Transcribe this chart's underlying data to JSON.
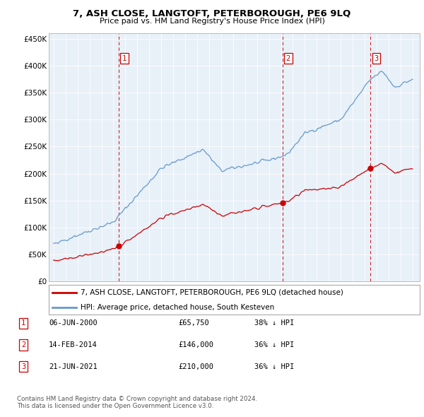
{
  "title": "7, ASH CLOSE, LANGTOFT, PETERBOROUGH, PE6 9LQ",
  "subtitle": "Price paid vs. HM Land Registry's House Price Index (HPI)",
  "y_ticks": [
    0,
    50000,
    100000,
    150000,
    200000,
    250000,
    300000,
    350000,
    400000,
    450000
  ],
  "ylim": [
    0,
    460000
  ],
  "sale_color": "#cc0000",
  "hpi_color": "#6699cc",
  "chart_bg": "#e8f0f8",
  "vline_color": "#cc0000",
  "sale_points": [
    {
      "year": 2000.44,
      "price": 65750
    },
    {
      "year": 2014.12,
      "price": 146000
    },
    {
      "year": 2021.47,
      "price": 210000
    }
  ],
  "sale_labels": [
    "1",
    "2",
    "3"
  ],
  "legend_sale": "7, ASH CLOSE, LANGTOFT, PETERBOROUGH, PE6 9LQ (detached house)",
  "legend_hpi": "HPI: Average price, detached house, South Kesteven",
  "table_rows": [
    {
      "label": "1",
      "date": "06-JUN-2000",
      "price": "£65,750",
      "pct": "38% ↓ HPI"
    },
    {
      "label": "2",
      "date": "14-FEB-2014",
      "price": "£146,000",
      "pct": "36% ↓ HPI"
    },
    {
      "label": "3",
      "date": "21-JUN-2021",
      "price": "£210,000",
      "pct": "36% ↓ HPI"
    }
  ],
  "footnote": "Contains HM Land Registry data © Crown copyright and database right 2024.\nThis data is licensed under the Open Government Licence v3.0."
}
